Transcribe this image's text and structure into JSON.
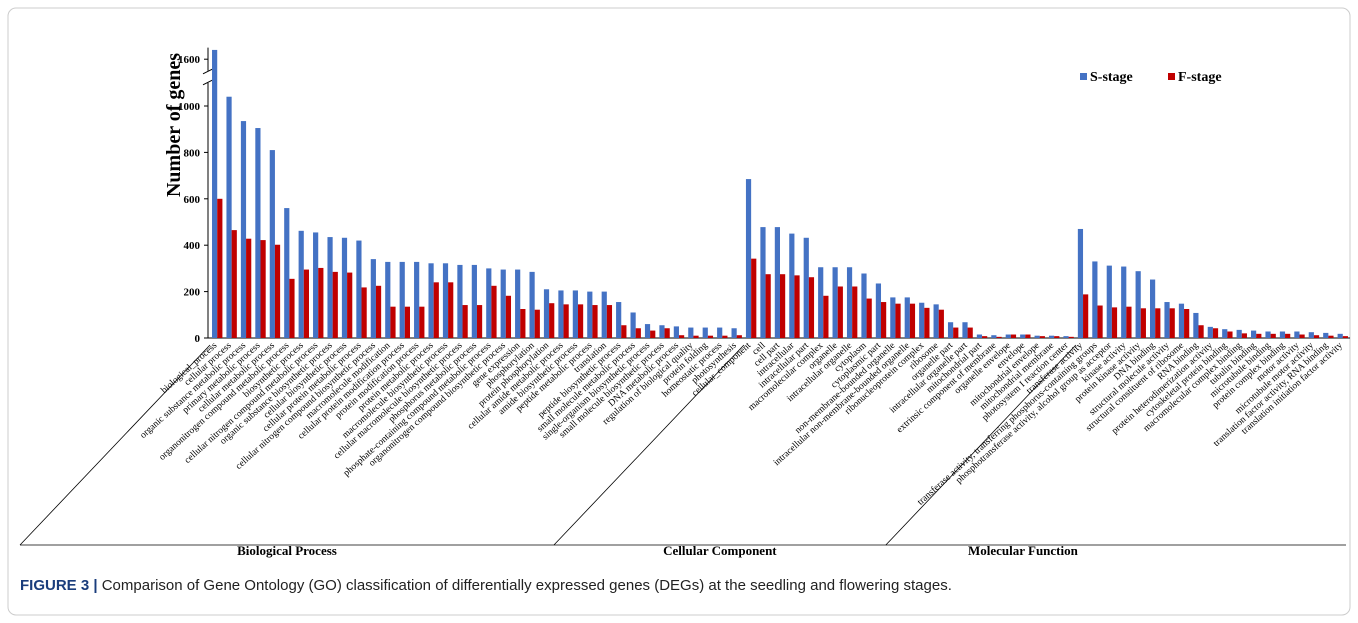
{
  "chart_data": {
    "type": "bar",
    "y_label": "Number of genes",
    "series": [
      {
        "name": "S-stage",
        "color": "#4472c4",
        "values": [
          1640,
          1040,
          935,
          905,
          810,
          560,
          462,
          455,
          435,
          432,
          420,
          340,
          328,
          328,
          328,
          322,
          322,
          315,
          315,
          300,
          295,
          295,
          285,
          210,
          205,
          205,
          200,
          200,
          155,
          110,
          60,
          55,
          50,
          45,
          45,
          45,
          42,
          685,
          478,
          478,
          450,
          432,
          305,
          305,
          305,
          278,
          235,
          175,
          175,
          152,
          145,
          68,
          68,
          15,
          12,
          15,
          15,
          10,
          10,
          8,
          470,
          330,
          312,
          308,
          288,
          252,
          155,
          148,
          108,
          48,
          38,
          35,
          32,
          28,
          28,
          28,
          25,
          22,
          18
        ]
      },
      {
        "name": "F-stage",
        "color": "#c00000",
        "values": [
          600,
          465,
          428,
          422,
          402,
          255,
          295,
          302,
          285,
          282,
          218,
          225,
          135,
          135,
          135,
          240,
          240,
          142,
          142,
          225,
          182,
          125,
          122,
          150,
          145,
          145,
          142,
          142,
          55,
          42,
          32,
          42,
          12,
          10,
          10,
          10,
          12,
          342,
          275,
          275,
          270,
          262,
          182,
          222,
          222,
          170,
          155,
          148,
          148,
          130,
          122,
          45,
          45,
          8,
          5,
          15,
          15,
          8,
          8,
          5,
          188,
          140,
          132,
          135,
          128,
          128,
          128,
          125,
          55,
          42,
          28,
          20,
          18,
          18,
          18,
          15,
          12,
          10,
          8
        ]
      }
    ],
    "groups": [
      {
        "name": "Biological Process",
        "categories": [
          "biological_process",
          "cellular process",
          "organic substance metabolic process",
          "primary metabolic process",
          "cellular metabolic process",
          "organonitrogen compound metabolic process",
          "biosynthetic process",
          "cellular nitrogen compound metabolic process",
          "organic substance biosynthetic process",
          "cellular biosynthetic process",
          "cellular protein metabolic process",
          "cellular nitrogen compound biosynthetic process",
          "macromolecule modification",
          "cellular protein modification process",
          "protein modification process",
          "protein metabolic process",
          "macromolecule biosynthetic process",
          "cellular macromolecule biosynthetic process",
          "phosphorus metabolic process",
          "phosphate-containing compound metabolic process",
          "organonitrogen compound biosynthetic process",
          "gene expression",
          "phosphorylation",
          "protein phosphorylation",
          "cellular amide metabolic process",
          "amide biosynthetic process",
          "peptide metabolic process",
          "translation",
          "peptide biosynthetic process",
          "small molecule metabolic process",
          "single-organism biosynthetic process",
          "small molecule biosynthetic process",
          "DNA metabolic process",
          "regulation of biological quality",
          "protein folding",
          "homeostatic process",
          "photosynthesis"
        ]
      },
      {
        "name": "Cellular Component",
        "categories": [
          "cellular_component",
          "cell",
          "cell part",
          "intracellular",
          "intracellular part",
          "macromolecular complex",
          "organelle",
          "intracellular organelle",
          "cytoplasm",
          "cytoplasmic part",
          "non-membrane-bounded organelle",
          "intracellular non-membrane-bounded organelle",
          "ribonucleoprotein complex",
          "ribosome",
          "organelle part",
          "intracellular organelle part",
          "mitochondrial part",
          "extrinsic component of membrane",
          "organelle envelope",
          "envelope",
          "mitochondrial envelope",
          "mitochondrial membrane",
          "photosystem I reaction center"
        ]
      },
      {
        "name": "Molecular Function",
        "categories": [
          "transferase activity",
          "transferase activity, transferring phosphorus-containing groups",
          "phosphotransferase activity, alcohol group as acceptor",
          "kinase activity",
          "protein kinase activity",
          "DNA binding",
          "structural molecule activity",
          "structural constituent of ribosome",
          "RNA binding",
          "protein heterodimerization activity",
          "cytoskeletal protein binding",
          "macromolecular complex binding",
          "tubulin binding",
          "microtubule binding",
          "protein complex binding",
          "motor activity",
          "microtubule motor activity",
          "translation factor activity, RNA binding",
          "translation initiation factor activity"
        ]
      }
    ],
    "ylim": [
      0,
      1650
    ],
    "yticks": [
      0,
      200,
      400,
      600,
      800,
      1000,
      1600
    ],
    "y_break": [
      1100,
      1550
    ],
    "legend": "upper right"
  },
  "caption": {
    "label": "FIGURE 3 |",
    "text": "Comparison of Gene Ontology (GO) classification of differentially expressed genes (DEGs) at the seedling and flowering stages."
  }
}
